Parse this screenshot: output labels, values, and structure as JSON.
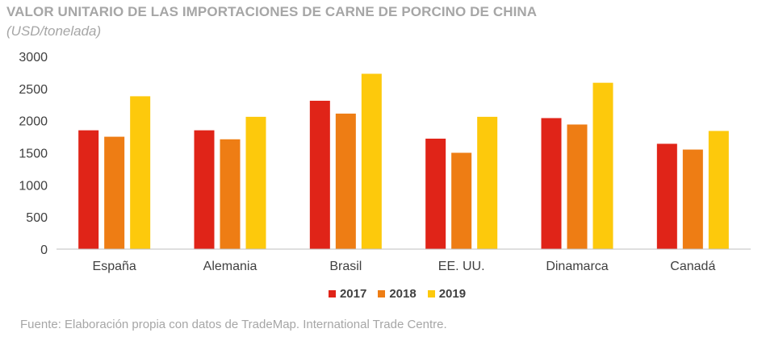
{
  "chart_data": {
    "type": "bar",
    "title": "VALOR UNITARIO DE LAS IMPORTACIONES DE CARNE DE PORCINO DE CHINA",
    "subtitle": "(USD/tonelada)",
    "categories": [
      "España",
      "Alemania",
      "Brasil",
      "EE. UU.",
      "Dinamarca",
      "Canadá"
    ],
    "series": [
      {
        "name": "2017",
        "color": "#e02418",
        "values": [
          1850,
          1850,
          2310,
          1720,
          2040,
          1640
        ]
      },
      {
        "name": "2018",
        "color": "#ee7d14",
        "values": [
          1750,
          1710,
          2110,
          1500,
          1940,
          1550
        ]
      },
      {
        "name": "2019",
        "color": "#fdc90c",
        "values": [
          2380,
          2060,
          2730,
          2060,
          2590,
          1840
        ]
      }
    ],
    "yticks": [
      "0",
      "500",
      "1000",
      "1500",
      "2000",
      "2500",
      "3000"
    ],
    "ylim": [
      0,
      3000
    ],
    "grid": false,
    "legend_position": "bottom",
    "source": "Fuente: Elaboración propia con datos de TradeMap. International Trade Centre."
  }
}
